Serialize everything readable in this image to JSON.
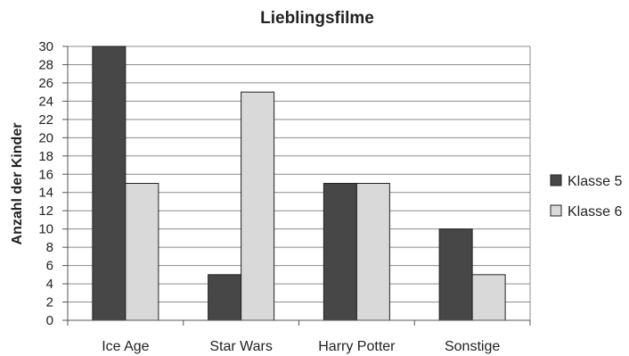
{
  "chart_data": {
    "type": "bar",
    "title": "Lieblingsfilme",
    "xlabel": "",
    "ylabel": "Anzahl der Kinder",
    "categories": [
      "Ice Age",
      "Star Wars",
      "Harry Potter",
      "Sonstige"
    ],
    "series": [
      {
        "name": "Klasse 5",
        "values": [
          30,
          5,
          15,
          10
        ],
        "color": "#474747"
      },
      {
        "name": "Klasse 6",
        "values": [
          15,
          25,
          15,
          5
        ],
        "color": "#d9d9d9"
      }
    ],
    "ylim": [
      0,
      30
    ],
    "yticks": [
      0,
      2,
      4,
      6,
      8,
      10,
      12,
      14,
      16,
      18,
      20,
      22,
      24,
      26,
      28,
      30
    ],
    "grid": true,
    "legend_position": "right"
  }
}
